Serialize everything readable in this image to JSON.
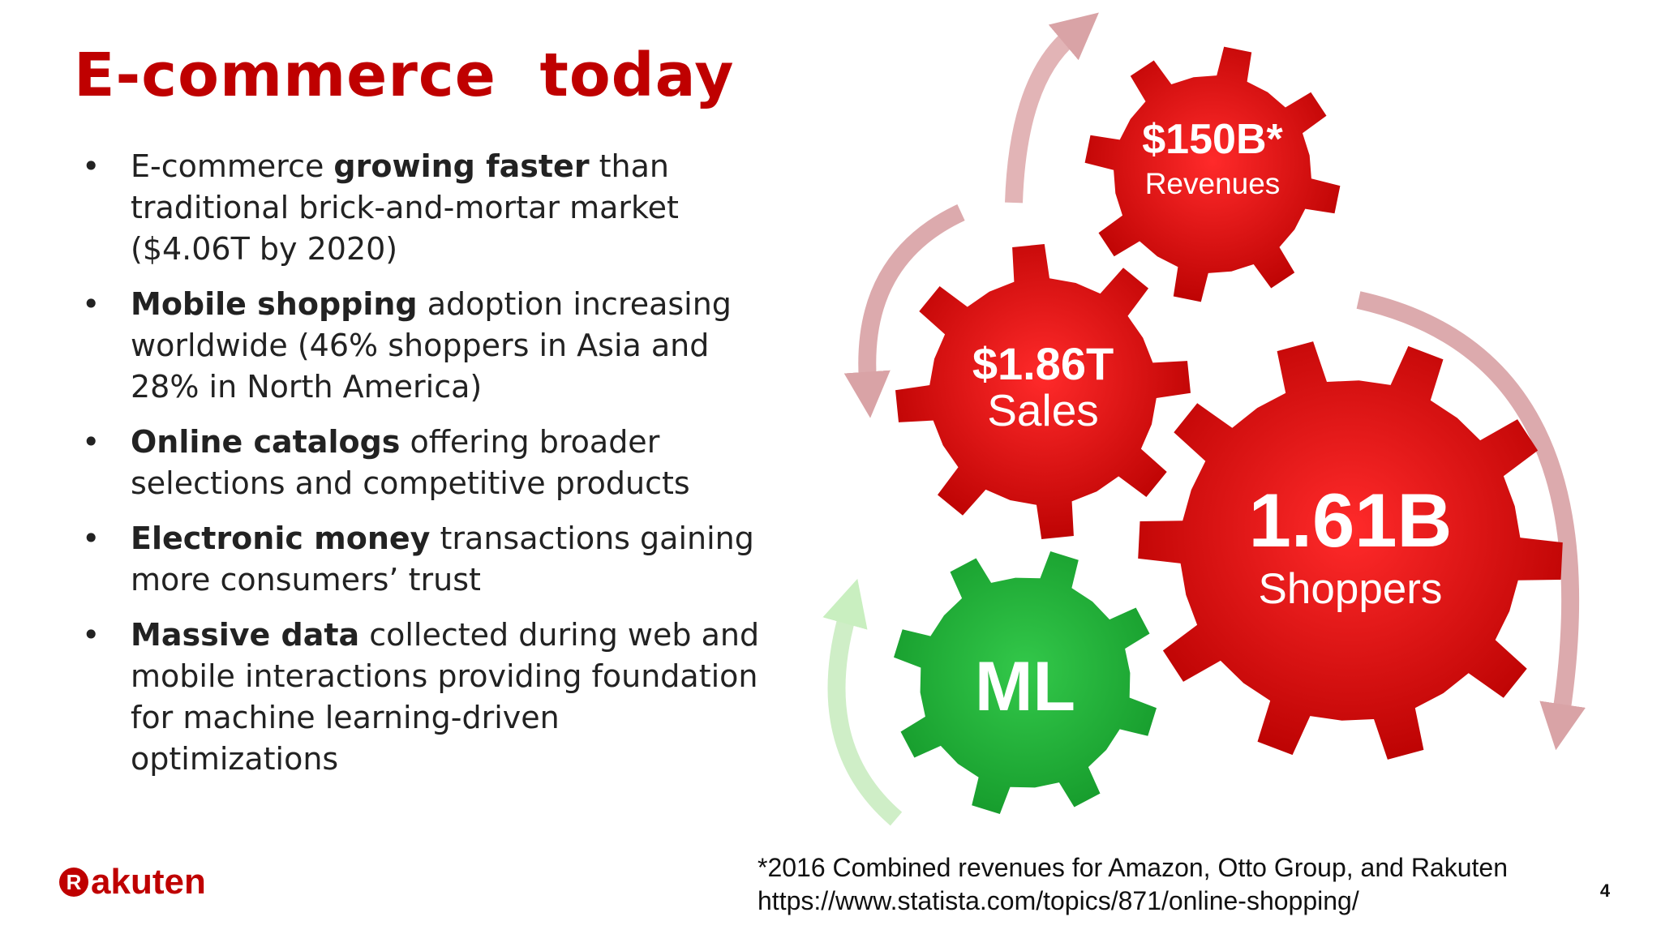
{
  "title": "E-commerce  today",
  "bullets": [
    {
      "runs": [
        {
          "text": "E-commerce ",
          "bold": false
        },
        {
          "text": "growing faster",
          "bold": true
        },
        {
          "text": " than traditional brick-and-mortar market ($4.06T by 2020)",
          "bold": false
        }
      ]
    },
    {
      "runs": [
        {
          "text": "Mobile shopping",
          "bold": true
        },
        {
          "text": " adoption increasing worldwide (46% shoppers in Asia and 28% in North America)",
          "bold": false
        }
      ]
    },
    {
      "runs": [
        {
          "text": "Online catalogs",
          "bold": true
        },
        {
          "text": " offering broader selections and competitive products",
          "bold": false
        }
      ]
    },
    {
      "runs": [
        {
          "text": "Electronic money",
          "bold": true
        },
        {
          "text": " transactions gaining more consumers’ trust",
          "bold": false
        }
      ]
    },
    {
      "runs": [
        {
          "text": "Massive data",
          "bold": true
        },
        {
          "text": " collected during web and mobile interactions providing foundation for machine learning-driven optimizations",
          "bold": false
        }
      ]
    }
  ],
  "gears": [
    {
      "value": "$150B*",
      "label": "Revenues"
    },
    {
      "value": "$1.86T",
      "label": "Sales"
    },
    {
      "value": "1.61B",
      "label": "Shoppers"
    },
    {
      "value": "ML"
    }
  ],
  "footnote": [
    "*2016 Combined revenues for Amazon, Otto Group, and Rakuten",
    "https://www.statista.com/topics/871/online-shopping/"
  ],
  "logo": {
    "mark": "R",
    "text": "akuten"
  },
  "page_number": "4"
}
